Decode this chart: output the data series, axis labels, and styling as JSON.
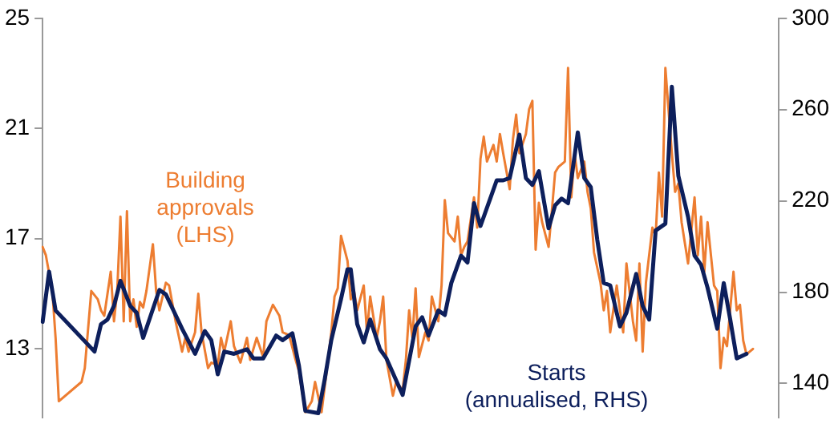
{
  "chart_data": {
    "type": "line",
    "categories": [
      null,
      null,
      null,
      null,
      null,
      null,
      null,
      null,
      null,
      null,
      null,
      null,
      null,
      null,
      null,
      null,
      null,
      null,
      null,
      null,
      null,
      null,
      null,
      null,
      null,
      null,
      null,
      null,
      null,
      null,
      null,
      null,
      null,
      null,
      null,
      null,
      null,
      null,
      null,
      null,
      null,
      null,
      null,
      null,
      null,
      null,
      null,
      null,
      null,
      null,
      null,
      null,
      null,
      null,
      null,
      null,
      null,
      null,
      null,
      null,
      null,
      null,
      null,
      null,
      null,
      null,
      null,
      null,
      null,
      null,
      null,
      null,
      null,
      null,
      null,
      null,
      null,
      null,
      null,
      null,
      null,
      null,
      null,
      null,
      null,
      null,
      null,
      null,
      null,
      null,
      null,
      null,
      null,
      null,
      null,
      null,
      null,
      null,
      null,
      null,
      null,
      null,
      null,
      null,
      null,
      null,
      null,
      null,
      null,
      null,
      null,
      null,
      null,
      null,
      null,
      null,
      null,
      null,
      null,
      null,
      null,
      null,
      null,
      null,
      null,
      null,
      null,
      null,
      null,
      null,
      null,
      null,
      null,
      null,
      null,
      null,
      null,
      null,
      null,
      null,
      null,
      null,
      null,
      null,
      null,
      null,
      null,
      null,
      null,
      null,
      null,
      null,
      null,
      null,
      null,
      null,
      null,
      null,
      null,
      null,
      null,
      null,
      null,
      null,
      null,
      null,
      null,
      null,
      null,
      null,
      null,
      null,
      null,
      null,
      null,
      null,
      null,
      null,
      null,
      null,
      null,
      null,
      null,
      null,
      null,
      null,
      null,
      null,
      null,
      null,
      null,
      null,
      null,
      null,
      null,
      null,
      null,
      null,
      null,
      null,
      null,
      null,
      null,
      null,
      null,
      null,
      null,
      null,
      null,
      null,
      null,
      null,
      null,
      null,
      null,
      null,
      null,
      null,
      null,
      null,
      null,
      null,
      null,
      null,
      null,
      null,
      null,
      null
    ],
    "series": [
      {
        "name": "Building approvals (LHS)",
        "color": "#ed7d31",
        "values": [
          16.7,
          16.4,
          null,
          15.1,
          13.4,
          11.1,
          null,
          null,
          null,
          null,
          null,
          null,
          11.8,
          12.3,
          null,
          15.1,
          null,
          14.8,
          14.4,
          14.2,
          null,
          15.8,
          14.0,
          15.1,
          17.8,
          14.0,
          18.0,
          14.0,
          14.8,
          13.8,
          14.7,
          14.5,
          15.1,
          null,
          16.8,
          15.1,
          14.4,
          null,
          15.4,
          15.3,
          null,
          14.0,
          null,
          12.9,
          13.4,
          12.9,
          null,
          13.6,
          15.0,
          13.6,
          null,
          12.3,
          12.5,
          null,
          12.4,
          13.4,
          12.9,
          null,
          14.0,
          13.1,
          null,
          12.5,
          null,
          13.4,
          12.6,
          null,
          13.4,
          null,
          12.7,
          14.0,
          null,
          14.6,
          null,
          14.2,
          13.6,
          null,
          13.5,
          null,
          12.6,
          12.2,
          null,
          10.7,
          null,
          11.1,
          11.8,
          null,
          10.7,
          null,
          12.6,
          13.6,
          14.9,
          15.2,
          17.1,
          null,
          16.2,
          14.8,
          15.1,
          14.4,
          null,
          15.3,
          13.6,
          14.9,
          null,
          13.4,
          14.0,
          14.9,
          12.6,
          null,
          11.3,
          11.8,
          null,
          11.5,
          12.6,
          14.4,
          13.4,
          15.2,
          12.7,
          null,
          13.6,
          13.3,
          14.9,
          null,
          14.0,
          15.3,
          18.4,
          17.2,
          null,
          16.9,
          17.8,
          16.4,
          16.7,
          16.9,
          null,
          18.5,
          17.4,
          19.9,
          20.7,
          19.8,
          null,
          20.4,
          19.8,
          20.8,
          20.1,
          null,
          18.8,
          20.6,
          21.5,
          20.1,
          null,
          20.8,
          21.7,
          22.0,
          16.6,
          18.3,
          17.6,
          null,
          16.7,
          18.0,
          19.4,
          19.6,
          null,
          19.8,
          23.2,
          18.5,
          20.1,
          19.2,
          null,
          19.8,
          18.7,
          18.1,
          16.5,
          null,
          15.4,
          14.4,
          15.1,
          13.6,
          null,
          15.3,
          14.4,
          13.6,
          16.1,
          null,
          14.0,
          13.3,
          16.1,
          12.9,
          15.4,
          null,
          17.4,
          17.1,
          19.4,
          17.8,
          23.2,
          null,
          20.1,
          18.7,
          19.0,
          17.6,
          null,
          16.1,
          17.3,
          18.5,
          16.4,
          17.8,
          15.8,
          17.6,
          null,
          15.3,
          15.1,
          12.3,
          13.4,
          13.1,
          null,
          15.8,
          14.4,
          14.6,
          13.3,
          12.8,
          null,
          13.0,
          null,
          null,
          null,
          null,
          null,
          null,
          null,
          null
        ]
      },
      {
        "name": "Starts (annualised, RHS)",
        "color": "#0d1f5c",
        "axis": "y2",
        "values": [
          167,
          null,
          189,
          null,
          172,
          null,
          null,
          null,
          null,
          null,
          null,
          null,
          null,
          null,
          null,
          null,
          154,
          null,
          166,
          null,
          168,
          null,
          174,
          null,
          185,
          null,
          null,
          174,
          null,
          171,
          null,
          160,
          null,
          null,
          null,
          null,
          181,
          null,
          179,
          null,
          null,
          170,
          null,
          164,
          null,
          null,
          null,
          153,
          null,
          null,
          163,
          null,
          159,
          null,
          144,
          null,
          154,
          null,
          null,
          153,
          null,
          154,
          null,
          155,
          null,
          151,
          null,
          null,
          151,
          null,
          null,
          null,
          161,
          null,
          159,
          null,
          null,
          162,
          null,
          148,
          null,
          128,
          null,
          null,
          null,
          127,
          null,
          142,
          null,
          159,
          null,
          null,
          177,
          null,
          190,
          190,
          null,
          166,
          null,
          158,
          null,
          168,
          null,
          null,
          155,
          null,
          151,
          null,
          null,
          null,
          null,
          135,
          null,
          null,
          null,
          165,
          null,
          169,
          null,
          161,
          null,
          null,
          172,
          null,
          170,
          null,
          184,
          null,
          null,
          196,
          null,
          193,
          null,
          219,
          null,
          209,
          null,
          null,
          221,
          null,
          229,
          null,
          229,
          null,
          230,
          null,
          null,
          249,
          null,
          230,
          null,
          227,
          null,
          233,
          null,
          null,
          208,
          null,
          218,
          null,
          221,
          null,
          219,
          null,
          null,
          250,
          null,
          230,
          null,
          226,
          null,
          203,
          null,
          184,
          null,
          183,
          null,
          null,
          165,
          null,
          171,
          null,
          null,
          188,
          null,
          174,
          null,
          168,
          null,
          207,
          null,
          null,
          210,
          null,
          270,
          null,
          231,
          null,
          null,
          213,
          null,
          196,
          null,
          192,
          null,
          182,
          null,
          null,
          164,
          null,
          184,
          null,
          168,
          null,
          151,
          null,
          null,
          153,
          null,
          null,
          null,
          null,
          null,
          null,
          null,
          null,
          null,
          null
        ]
      }
    ],
    "ylim": [
      10.5,
      25
    ],
    "yticks": [
      13,
      17,
      21,
      25
    ],
    "y2lim": [
      125,
      300
    ],
    "y2ticks": [
      140,
      180,
      220,
      260,
      300
    ],
    "grid": false,
    "marker": "none",
    "line_style": "solid"
  }
}
